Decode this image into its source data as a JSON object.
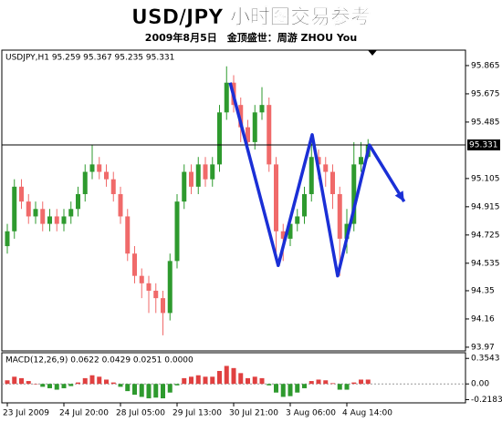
{
  "title": "USD/JPY  小时图交易参考",
  "subtitle": "2009年8月5日　金顶盛世：周游 ZHOU You",
  "chart_data": [
    {
      "type": "candlestick",
      "header": "USDJPY,H1  95.259 95.367 95.235 95.331",
      "categories": [
        "23 Jul 2009",
        null,
        null,
        null,
        null,
        null,
        null,
        null,
        "24 Jul 20:00",
        null,
        null,
        null,
        null,
        null,
        null,
        null,
        "28 Jul 05:00",
        null,
        null,
        null,
        null,
        null,
        null,
        null,
        "29 Jul 13:00",
        null,
        null,
        null,
        null,
        null,
        null,
        null,
        "30 Jul 21:00",
        null,
        null,
        null,
        null,
        null,
        null,
        null,
        "3 Aug 06:00",
        null,
        null,
        null,
        null,
        null,
        null,
        null,
        "4 Aug 14:00",
        null,
        null,
        null
      ],
      "open": [
        94.65,
        94.75,
        95.05,
        94.95,
        94.85,
        94.9,
        94.8,
        94.85,
        94.8,
        94.85,
        94.9,
        95.0,
        95.15,
        95.2,
        95.15,
        95.1,
        95.0,
        94.85,
        94.6,
        94.45,
        94.4,
        94.35,
        94.3,
        94.2,
        94.55,
        94.95,
        95.15,
        95.05,
        95.2,
        95.1,
        95.2,
        95.55,
        95.75,
        95.6,
        95.45,
        95.35,
        95.55,
        95.6,
        95.2,
        94.75,
        94.7,
        94.8,
        94.85,
        95.0,
        95.25,
        95.2,
        95.15,
        95.0,
        94.7,
        94.8,
        95.2,
        95.25
      ],
      "high": [
        94.8,
        95.1,
        95.1,
        95.0,
        94.95,
        94.95,
        94.9,
        94.9,
        94.9,
        94.95,
        95.05,
        95.2,
        95.33,
        95.25,
        95.2,
        95.15,
        95.05,
        94.9,
        94.65,
        94.5,
        94.45,
        94.4,
        94.35,
        94.6,
        95.0,
        95.2,
        95.2,
        95.25,
        95.25,
        95.25,
        95.6,
        95.86,
        95.8,
        95.65,
        95.5,
        95.6,
        95.72,
        95.65,
        95.25,
        94.8,
        94.85,
        94.9,
        95.05,
        95.35,
        95.3,
        95.25,
        95.2,
        95.05,
        94.9,
        95.35,
        95.35,
        95.37
      ],
      "low": [
        94.6,
        94.7,
        94.9,
        94.8,
        94.8,
        94.75,
        94.75,
        94.75,
        94.75,
        94.8,
        94.85,
        94.95,
        95.1,
        95.1,
        95.05,
        94.95,
        94.8,
        94.55,
        94.4,
        94.3,
        94.2,
        94.2,
        94.05,
        94.15,
        94.5,
        94.9,
        95.0,
        95.0,
        95.05,
        95.05,
        95.15,
        95.5,
        95.55,
        95.35,
        95.3,
        95.3,
        95.5,
        95.15,
        94.6,
        94.55,
        94.65,
        94.75,
        94.8,
        94.95,
        95.1,
        95.05,
        94.9,
        94.45,
        94.6,
        94.75,
        95.15,
        95.24
      ],
      "close": [
        94.75,
        95.05,
        94.95,
        94.85,
        94.9,
        94.8,
        94.85,
        94.8,
        94.85,
        94.9,
        95.0,
        95.15,
        95.2,
        95.15,
        95.1,
        95.0,
        94.85,
        94.6,
        94.45,
        94.4,
        94.35,
        94.3,
        94.2,
        94.55,
        94.95,
        95.15,
        95.05,
        95.2,
        95.1,
        95.2,
        95.55,
        95.75,
        95.6,
        95.45,
        95.35,
        95.55,
        95.6,
        95.2,
        94.75,
        94.7,
        94.8,
        94.85,
        95.0,
        95.25,
        95.2,
        95.15,
        95.0,
        94.7,
        94.8,
        95.2,
        95.25,
        95.33
      ],
      "up_color": "#2e9a2e",
      "down_color": "#f06a6a",
      "ylim": [
        93.945,
        95.969
      ],
      "yticks": [
        95.865,
        95.675,
        95.485,
        95.105,
        94.915,
        94.725,
        94.535,
        94.35,
        94.16,
        93.97
      ],
      "current_price": 95.331,
      "zigzag": {
        "x": [
          31.5,
          38.3,
          43.1,
          46.7,
          51.2,
          56.1
        ],
        "y": [
          95.75,
          94.52,
          95.4,
          94.45,
          95.33,
          94.95
        ],
        "color": "#1a2fd6"
      },
      "grid": false
    },
    {
      "type": "bar",
      "header": "MACD(12,26,9) 0.0622 0.0429 0.0251 0.0000",
      "values": [
        0.05,
        0.1,
        0.08,
        0.04,
        0.0,
        -0.04,
        -0.06,
        -0.08,
        -0.06,
        -0.03,
        0.02,
        0.08,
        0.12,
        0.1,
        0.06,
        0.02,
        -0.04,
        -0.1,
        -0.15,
        -0.18,
        -0.2,
        -0.19,
        -0.2,
        -0.12,
        -0.02,
        0.08,
        0.1,
        0.12,
        0.1,
        0.1,
        0.18,
        0.25,
        0.22,
        0.15,
        0.08,
        0.1,
        0.08,
        -0.02,
        -0.12,
        -0.18,
        -0.17,
        -0.12,
        -0.06,
        0.04,
        0.06,
        0.05,
        0.01,
        -0.08,
        -0.08,
        0.02,
        0.06,
        0.06
      ],
      "up_color": "#e04040",
      "down_color": "#2e9a2e",
      "ylim": [
        -0.263,
        0.433
      ],
      "yticks": [
        0.3543,
        {
          "value": 0,
          "label": "0.00"
        },
        -0.2183
      ],
      "grid": false
    }
  ]
}
